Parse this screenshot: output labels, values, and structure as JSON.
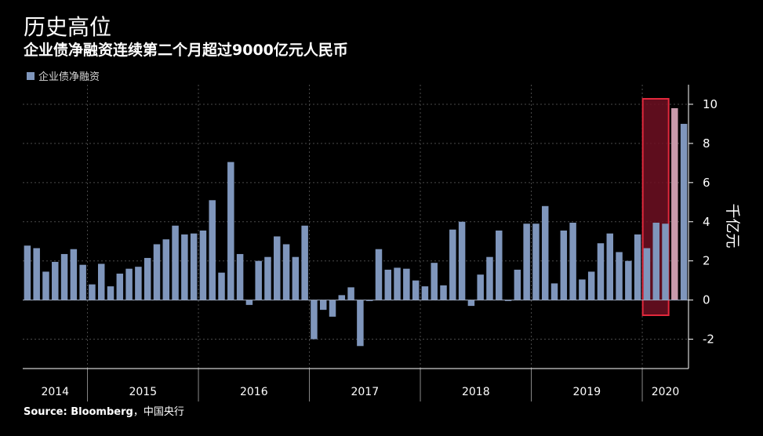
{
  "title": "历史高位",
  "subtitle": "企业债净融资连续第二个月超过9000亿元人民币",
  "source": {
    "prefix": "Source: Bloomberg",
    "suffix": "，中国央行"
  },
  "colors": {
    "background": "#000000",
    "bar": "#7f96bc",
    "highlight_bar": "#c89aab",
    "highlight_fill": "#6e0f22",
    "highlight_stroke": "#e2283c",
    "grid": "#4a4a4a"
  },
  "chart_data": {
    "type": "bar",
    "title": "历史高位",
    "subtitle": "企业债净融资连续第二个月超过9000亿元人民币",
    "ylabel": "千亿元",
    "ylim": [
      -3.5,
      11
    ],
    "yticks": [
      -2,
      0,
      2,
      4,
      6,
      8,
      10
    ],
    "grid": true,
    "legend": {
      "position": "top-left",
      "entries": [
        "企业债净融资"
      ]
    },
    "year_labels": [
      "2014",
      "2015",
      "2016",
      "2017",
      "2018",
      "2019",
      "2020"
    ],
    "year_start_index": [
      0,
      7,
      19,
      31,
      43,
      55,
      67
    ],
    "highlight": {
      "start_index": 67,
      "end_index": 68
    },
    "series": [
      {
        "name": "企业债净融资",
        "values": [
          2.78,
          2.65,
          1.45,
          1.95,
          2.35,
          2.6,
          1.8,
          0.8,
          1.85,
          0.7,
          1.35,
          1.6,
          1.7,
          2.15,
          2.85,
          3.1,
          3.8,
          3.35,
          3.4,
          3.55,
          5.1,
          1.4,
          7.05,
          2.35,
          -0.25,
          2.0,
          2.2,
          3.25,
          2.85,
          2.2,
          3.8,
          -2.0,
          -0.5,
          -0.85,
          0.25,
          0.65,
          -2.35,
          -0.05,
          2.6,
          1.55,
          1.65,
          1.6,
          1.0,
          0.7,
          1.9,
          0.75,
          3.6,
          4.0,
          -0.3,
          1.3,
          2.2,
          3.55,
          -0.05,
          1.55,
          3.9,
          3.9,
          4.8,
          0.85,
          3.55,
          3.95,
          1.05,
          1.45,
          2.9,
          3.4,
          2.45,
          2.0,
          3.35,
          2.65,
          3.95,
          3.9,
          9.8,
          9.0
        ]
      }
    ]
  }
}
